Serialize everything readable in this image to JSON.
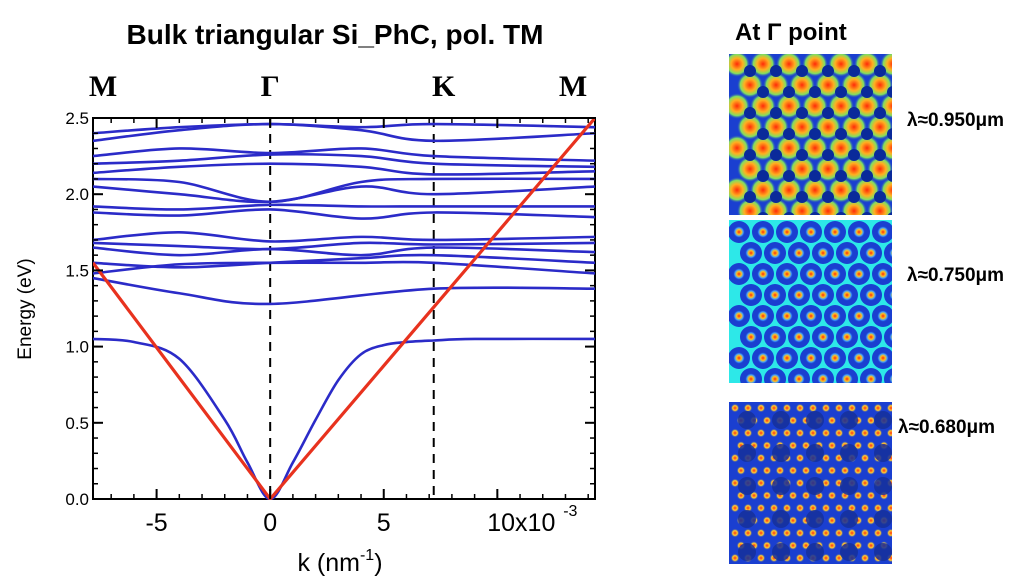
{
  "chart_data": {
    "type": "line",
    "title": "Bulk triangular Si_PhC, pol. TM",
    "xlabel": "k (nm",
    "xlabel_sup": "-1",
    "xlabel_close": ")",
    "ylabel": "Energy (eV)",
    "xlim": [
      -0.0078,
      0.0143
    ],
    "ylim": [
      0,
      2.5
    ],
    "x_tick_values": [
      -0.005,
      0,
      0.005,
      0.01
    ],
    "x_tick_labels": [
      "-5",
      "0",
      "5",
      "10x10"
    ],
    "x_tick_exponent": "-3",
    "y_tick_values": [
      0.0,
      0.5,
      1.0,
      1.5,
      2.0,
      2.5
    ],
    "y_tick_labels": [
      "0.0",
      "0.5",
      "1.0",
      "1.5",
      "2.0",
      "2.5"
    ],
    "symmetry_points": [
      {
        "label": "M",
        "k": -0.0078,
        "dashed": false
      },
      {
        "label": "Γ",
        "k": 0.0,
        "dashed": true
      },
      {
        "label": "K",
        "k": 0.0072,
        "dashed": true
      },
      {
        "label": "M",
        "k": 0.0143,
        "dashed": false
      }
    ],
    "grid": false,
    "band_color": "#2b2bc8",
    "light_line_color": "#e8321e",
    "light_line": {
      "name": "",
      "x": [
        -0.0078,
        0.0,
        0.0143
      ],
      "y": [
        1.55,
        0.0,
        2.5
      ]
    },
    "bands": [
      {
        "name": "",
        "x": [
          -0.0078,
          -0.006,
          -0.004,
          -0.002,
          -0.001,
          0,
          0.001,
          0.002,
          0.003,
          0.004,
          0.005,
          0.006,
          0.0072,
          0.009,
          0.0143
        ],
        "y": [
          1.05,
          1.03,
          0.92,
          0.52,
          0.24,
          0.0,
          0.24,
          0.52,
          0.78,
          0.95,
          1.01,
          1.03,
          1.04,
          1.05,
          1.05
        ]
      },
      {
        "name": "",
        "x": [
          -0.0078,
          -0.004,
          0,
          0.0072,
          0.0143
        ],
        "y": [
          1.45,
          1.35,
          1.28,
          1.38,
          1.38
        ]
      },
      {
        "name": "",
        "x": [
          -0.0078,
          -0.004,
          0,
          0.004,
          0.0072,
          0.0143
        ],
        "y": [
          1.48,
          1.54,
          1.55,
          1.55,
          1.55,
          1.48
        ]
      },
      {
        "name": "",
        "x": [
          -0.0078,
          -0.004,
          0,
          0.004,
          0.0072,
          0.0143
        ],
        "y": [
          1.55,
          1.52,
          1.55,
          1.58,
          1.6,
          1.55
        ]
      },
      {
        "name": "",
        "x": [
          -0.0078,
          -0.004,
          0,
          0.004,
          0.0072,
          0.0143
        ],
        "y": [
          1.65,
          1.6,
          1.64,
          1.6,
          1.65,
          1.62
        ]
      },
      {
        "name": "",
        "x": [
          -0.0078,
          -0.004,
          0,
          0.004,
          0.0072,
          0.0143
        ],
        "y": [
          1.68,
          1.66,
          1.64,
          1.68,
          1.67,
          1.68
        ]
      },
      {
        "name": "",
        "x": [
          -0.0078,
          -0.004,
          0,
          0.004,
          0.0072,
          0.0143
        ],
        "y": [
          1.7,
          1.75,
          1.69,
          1.72,
          1.7,
          1.72
        ]
      },
      {
        "name": "",
        "x": [
          -0.0078,
          -0.004,
          0,
          0.004,
          0.0072,
          0.0143
        ],
        "y": [
          1.88,
          1.86,
          1.9,
          1.84,
          1.88,
          1.85
        ]
      },
      {
        "name": "",
        "x": [
          -0.0078,
          -0.004,
          0,
          0.004,
          0.0072,
          0.0143
        ],
        "y": [
          1.92,
          1.9,
          1.93,
          1.92,
          1.92,
          1.92
        ]
      },
      {
        "name": "",
        "x": [
          -0.0078,
          -0.004,
          0,
          0.004,
          0.0072,
          0.0143
        ],
        "y": [
          2.05,
          2.0,
          1.95,
          2.05,
          2.0,
          2.05
        ]
      },
      {
        "name": "",
        "x": [
          -0.0078,
          -0.004,
          0,
          0.004,
          0.0072,
          0.0143
        ],
        "y": [
          2.1,
          2.08,
          1.95,
          2.08,
          2.1,
          2.1
        ]
      },
      {
        "name": "",
        "x": [
          -0.0078,
          -0.004,
          0,
          0.004,
          0.0072,
          0.0143
        ],
        "y": [
          2.14,
          2.18,
          2.2,
          2.18,
          2.13,
          2.15
        ]
      },
      {
        "name": "",
        "x": [
          -0.0078,
          -0.004,
          0,
          0.004,
          0.0072,
          0.0143
        ],
        "y": [
          2.2,
          2.22,
          2.26,
          2.25,
          2.2,
          2.18
        ]
      },
      {
        "name": "",
        "x": [
          -0.0078,
          -0.004,
          0,
          0.004,
          0.0072,
          0.0143
        ],
        "y": [
          2.25,
          2.3,
          2.27,
          2.3,
          2.25,
          2.22
        ]
      },
      {
        "name": "",
        "x": [
          -0.0078,
          -0.004,
          0,
          0.004,
          0.0072,
          0.0143
        ],
        "y": [
          2.35,
          2.42,
          2.46,
          2.42,
          2.35,
          2.4
        ]
      },
      {
        "name": "",
        "x": [
          -0.0078,
          -0.004,
          0,
          0.004,
          0.0072,
          0.0143
        ],
        "y": [
          2.4,
          2.44,
          2.46,
          2.44,
          2.46,
          2.44
        ]
      }
    ]
  },
  "side_panel": {
    "title": "At Γ point",
    "modes": [
      {
        "label": "λ≈0.950μm",
        "pattern": "mode-950",
        "background": "#1a3fd0",
        "spot": "#ff3a10"
      },
      {
        "label": "λ≈0.750μm",
        "pattern": "mode-750",
        "background": "#2de8e8",
        "spot": "#ff3a10"
      },
      {
        "label": "λ≈0.680μm",
        "pattern": "mode-680",
        "background": "#1a3fd0",
        "spot": "#ff6a10"
      }
    ]
  }
}
